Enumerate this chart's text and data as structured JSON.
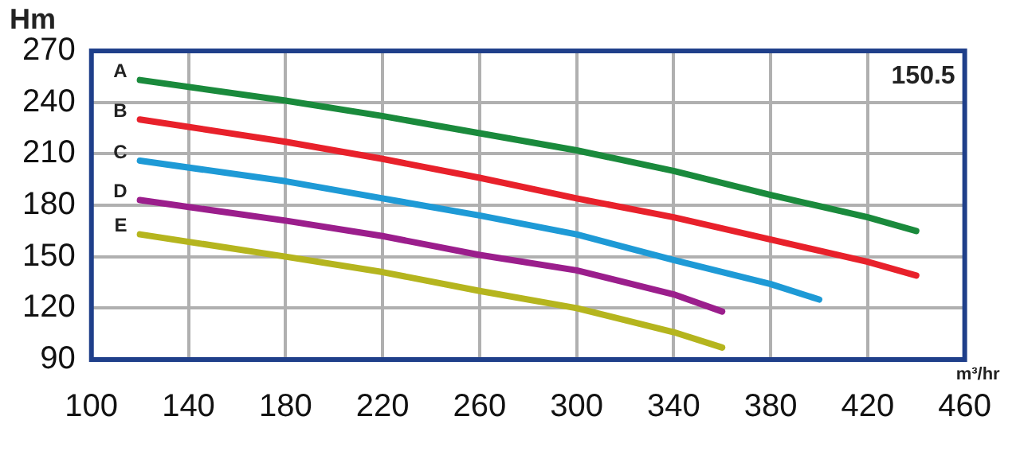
{
  "chart_data": {
    "type": "line",
    "ylabel": "Hm",
    "xlabel": "m³/hr",
    "annotations": [
      "150.5"
    ],
    "xlim": [
      100,
      460
    ],
    "xticks": [
      100,
      140,
      180,
      220,
      260,
      300,
      340,
      380,
      420,
      460
    ],
    "ylim": [
      90,
      270
    ],
    "yticks": [
      90,
      120,
      150,
      180,
      210,
      240,
      270
    ],
    "grid": true,
    "legend": false,
    "marker": "none",
    "line_style": "solid",
    "series": [
      {
        "name": "A",
        "color": "#1a8a3c",
        "x": [
          120,
          180,
          220,
          300,
          340,
          380,
          420,
          440
        ],
        "values": [
          253,
          241,
          232,
          212,
          200,
          186,
          173,
          165
        ]
      },
      {
        "name": "B",
        "color": "#e8212b",
        "x": [
          120,
          180,
          220,
          260,
          300,
          340,
          380,
          420,
          440
        ],
        "values": [
          230,
          217,
          207,
          196,
          184,
          173,
          160,
          147,
          139
        ]
      },
      {
        "name": "C",
        "color": "#1e9ad6",
        "x": [
          120,
          180,
          220,
          260,
          300,
          340,
          380,
          400
        ],
        "values": [
          206,
          194,
          184,
          174,
          163,
          148,
          134,
          125
        ]
      },
      {
        "name": "D",
        "color": "#9b1e8c",
        "x": [
          120,
          180,
          220,
          260,
          300,
          340,
          360
        ],
        "values": [
          183,
          171,
          162,
          151,
          142,
          128,
          118
        ]
      },
      {
        "name": "E",
        "color": "#b5b51e",
        "x": [
          120,
          180,
          220,
          260,
          300,
          340,
          360
        ],
        "values": [
          163,
          150,
          141,
          130,
          120,
          106,
          97
        ]
      }
    ]
  }
}
